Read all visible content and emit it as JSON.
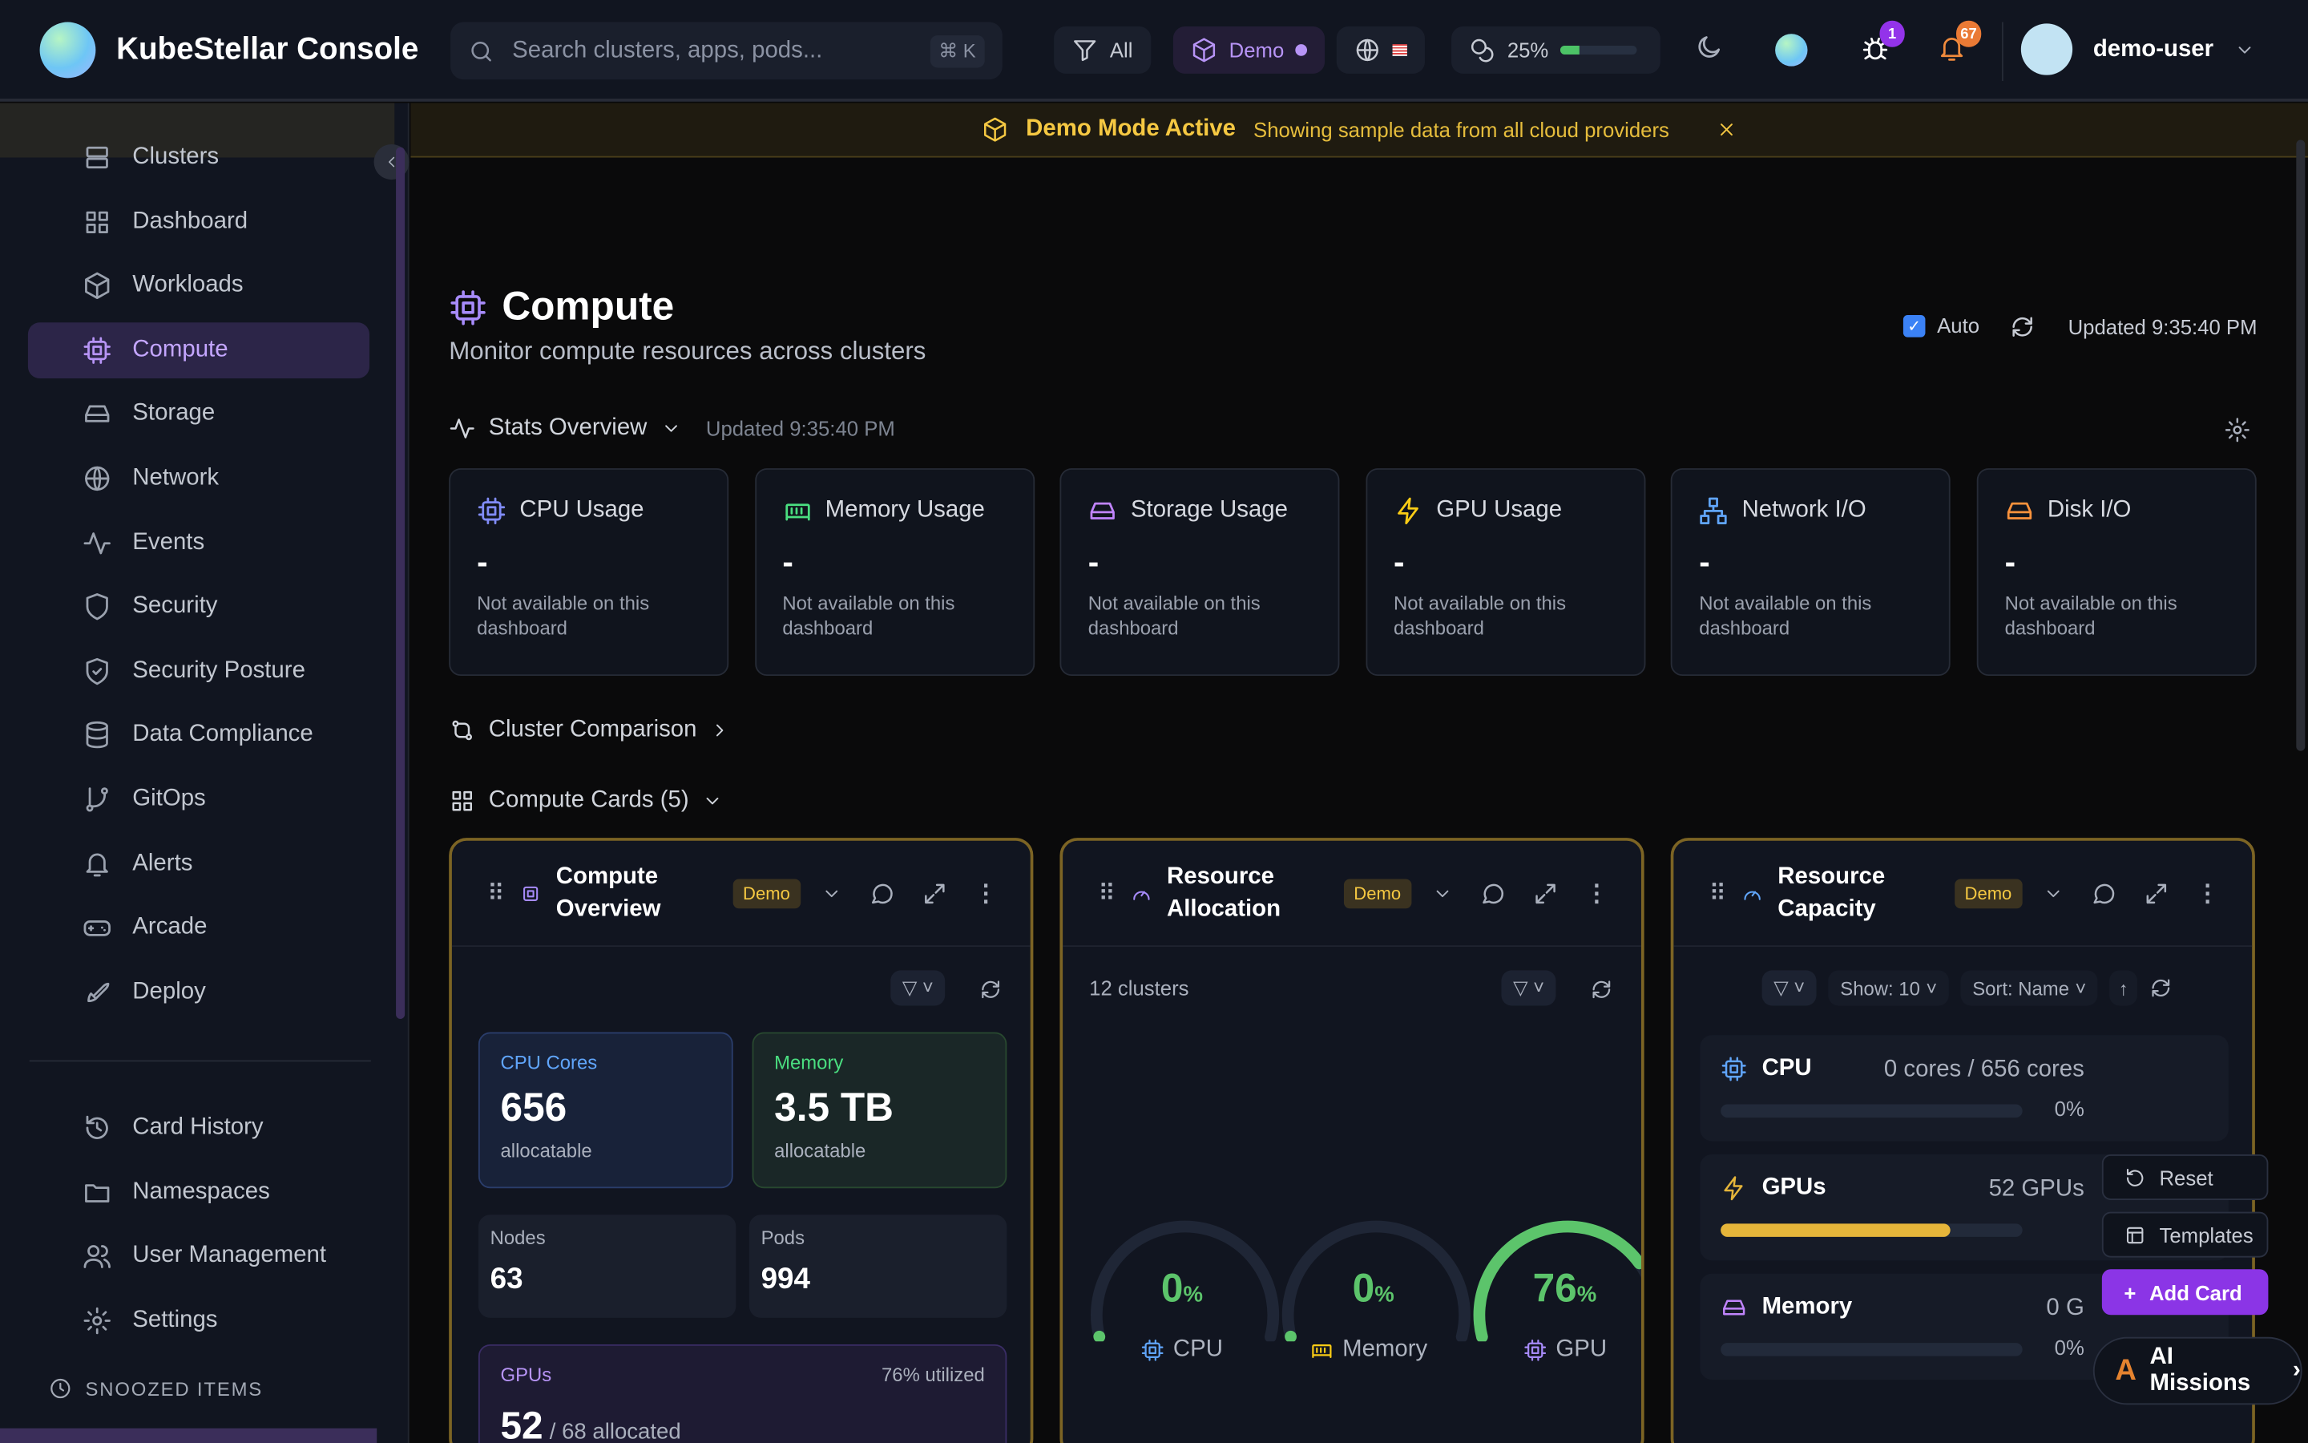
{
  "app": {
    "title": "KubeStellar Console"
  },
  "topbar": {
    "search_placeholder": "Search clusters, apps, pods...",
    "search_shortcut": "⌘ K",
    "filter_label": "All",
    "demo_label": "Demo",
    "usage_percent_label": "25%",
    "usage_percent": 25,
    "bug_badge": "1",
    "notification_badge": "67",
    "username": "demo-user",
    "accent": "#a78bfa"
  },
  "banner": {
    "title": "Demo Mode Active",
    "message": "Showing sample data from all cloud providers"
  },
  "sidebar": {
    "items": [
      {
        "label": "Clusters",
        "icon": "server-icon"
      },
      {
        "label": "Dashboard",
        "icon": "grid-icon"
      },
      {
        "label": "Workloads",
        "icon": "box-icon"
      },
      {
        "label": "Compute",
        "icon": "cpu-icon",
        "active": true
      },
      {
        "label": "Storage",
        "icon": "hard-drive-icon"
      },
      {
        "label": "Network",
        "icon": "globe-icon"
      },
      {
        "label": "Events",
        "icon": "activity-icon"
      },
      {
        "label": "Security",
        "icon": "shield-icon"
      },
      {
        "label": "Security Posture",
        "icon": "shield-check-icon"
      },
      {
        "label": "Data Compliance",
        "icon": "database-icon"
      },
      {
        "label": "GitOps",
        "icon": "git-branch-icon"
      },
      {
        "label": "Alerts",
        "icon": "bell-icon"
      },
      {
        "label": "Arcade",
        "icon": "gamepad-icon"
      },
      {
        "label": "Deploy",
        "icon": "rocket-icon"
      }
    ],
    "secondary": [
      {
        "label": "Card History",
        "icon": "history-icon"
      },
      {
        "label": "Namespaces",
        "icon": "folder-icon"
      },
      {
        "label": "User Management",
        "icon": "users-icon"
      },
      {
        "label": "Settings",
        "icon": "gear-icon"
      }
    ],
    "snoozed_label": "SNOOZED ITEMS"
  },
  "page": {
    "title": "Compute",
    "subtitle": "Monitor compute resources across clusters",
    "auto_label": "Auto",
    "auto_checked": true,
    "updated": "Updated 9:35:40 PM"
  },
  "stats": {
    "title": "Stats Overview",
    "updated": "Updated 9:35:40 PM",
    "cards": [
      {
        "label": "CPU Usage",
        "value": "-",
        "note": "Not available on this dashboard",
        "color": "#818cf8"
      },
      {
        "label": "Memory Usage",
        "value": "-",
        "note": "Not available on this dashboard",
        "color": "#4ade80"
      },
      {
        "label": "Storage Usage",
        "value": "-",
        "note": "Not available on this dashboard",
        "color": "#c084fc"
      },
      {
        "label": "GPU Usage",
        "value": "-",
        "note": "Not available on this dashboard",
        "color": "#facc15"
      },
      {
        "label": "Network I/O",
        "value": "-",
        "note": "Not available on this dashboard",
        "color": "#60a5fa"
      },
      {
        "label": "Disk I/O",
        "value": "-",
        "note": "Not available on this dashboard",
        "color": "#fb923c"
      }
    ]
  },
  "cluster_comparison": "Cluster Comparison",
  "compute_cards_title": "Compute Cards (5)",
  "cards": {
    "overview": {
      "title": "Compute Overview",
      "badge": "Demo",
      "cpu_label": "CPU Cores",
      "cpu_value": "656",
      "cpu_sub": "allocatable",
      "mem_label": "Memory",
      "mem_value": "3.5 TB",
      "mem_sub": "allocatable",
      "nodes_label": "Nodes",
      "nodes_value": "63",
      "pods_label": "Pods",
      "pods_value": "994",
      "gpu_label": "GPUs",
      "gpu_util": "76% utilized",
      "gpu_value": "52",
      "gpu_sub": "/ 68 allocated"
    },
    "allocation": {
      "title": "Resource Allocation",
      "badge": "Demo",
      "clusters": "12 clusters",
      "gauges": [
        {
          "label": "CPU",
          "value": 0,
          "text": "0"
        },
        {
          "label": "Memory",
          "value": 0,
          "text": "0"
        },
        {
          "label": "GPU",
          "value": 76,
          "text": "76"
        }
      ],
      "unit": "%"
    },
    "capacity": {
      "title": "Resource Capacity",
      "badge": "Demo",
      "show": "Show: 10",
      "sort": "Sort: Name",
      "rows": [
        {
          "label": "CPU",
          "value": "0 cores / 656 cores",
          "percent_label": "0%",
          "percent": 0,
          "color": "#60a5fa"
        },
        {
          "label": "GPUs",
          "value": "52 GPUs",
          "percent": 76,
          "color": "#e5b53a"
        },
        {
          "label": "Memory",
          "value": "0 G",
          "percent_label": "0%",
          "percent": 0,
          "color": "#c084fc"
        }
      ]
    }
  },
  "floating": {
    "reset": "Reset",
    "templates": "Templates",
    "add_card": "Add Card",
    "ai_missions": "AI Missions"
  }
}
